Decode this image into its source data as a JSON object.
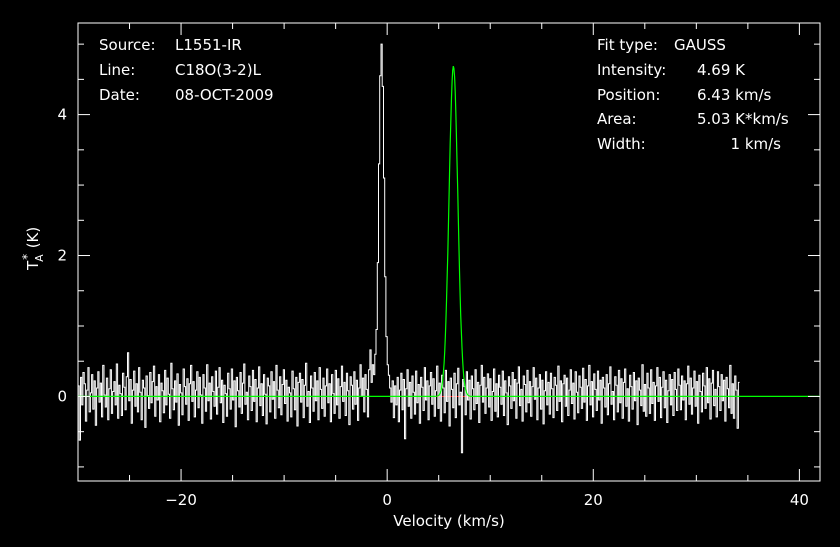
{
  "colors": {
    "background": "#000000",
    "foreground": "#ffffff",
    "fit": "#00ff00",
    "baseline": "#ff0000",
    "zero_line": "#00ff00"
  },
  "header_left": {
    "source_label": "Source:",
    "source_value": "L1551-IR",
    "line_label": "Line:",
    "line_value": "C18O(3-2)L",
    "date_label": "Date:",
    "date_value": "08-OCT-2009"
  },
  "header_right": {
    "fit_type_label": "Fit type:",
    "fit_type_value": "GAUSS",
    "intensity_label": "Intensity:",
    "intensity_value": "4.69 K",
    "position_label": "Position:",
    "position_value": "6.43 km/s",
    "area_label": "Area:",
    "area_value": "5.03 K*km/s",
    "width_label": "Width:",
    "width_value": "1 km/s"
  },
  "chart_data": {
    "type": "line",
    "xlabel": "Velocity (km/s)",
    "ylabel": "T",
    "ylabel_sup": "*",
    "ylabel_sub": "A",
    "ylabel_unit": "(K)",
    "xlim": [
      -30,
      42
    ],
    "ylim": [
      -1.2,
      5.3
    ],
    "x_ticks": [
      -20,
      0,
      20,
      40
    ],
    "x_tick_labels": [
      "−20",
      "0",
      "20",
      "40"
    ],
    "y_ticks": [
      0,
      2,
      4
    ],
    "y_tick_labels": [
      "0",
      "2",
      "4"
    ],
    "grid": false,
    "series": [
      {
        "values_kind": "spectrum",
        "x_start": -30,
        "x_step": 0.12,
        "values": [
          0.15,
          -0.62,
          0.27,
          -0.12,
          0.34,
          0.18,
          -0.35,
          0.09,
          0.41,
          -0.22,
          0.05,
          0.31,
          -0.18,
          0.22,
          -0.41,
          0.12,
          0.35,
          -0.08,
          0.19,
          -0.29,
          0.44,
          0.02,
          -0.15,
          0.26,
          -0.33,
          0.11,
          0.38,
          -0.24,
          0.07,
          0.21,
          -0.12,
          0.46,
          -0.31,
          0.16,
          0.04,
          -0.27,
          0.33,
          0.13,
          -0.19,
          0.28,
          0.62,
          -0.06,
          0.24,
          -0.38,
          0.09,
          0.36,
          -0.14,
          0.18,
          -0.22,
          0.41,
          0.06,
          -0.33,
          0.23,
          0.12,
          -0.44,
          0.29,
          0.01,
          -0.17,
          0.34,
          -0.09,
          0.21,
          0.43,
          -0.28,
          0.14,
          -0.05,
          0.31,
          -0.36,
          0.19,
          0.08,
          -0.23,
          0.37,
          -0.12,
          0.26,
          0.03,
          -0.31,
          0.47,
          0.11,
          -0.19,
          0.22,
          -0.08,
          0.32,
          -0.41,
          0.17,
          0.05,
          -0.26,
          0.39,
          0.14,
          -0.11,
          0.25,
          -0.34,
          0.18,
          0.44,
          -0.07,
          0.21,
          -0.29,
          0.09,
          0.35,
          -0.16,
          0.27,
          0.02,
          -0.38,
          0.31,
          0.12,
          -0.21,
          0.45,
          -0.06,
          0.19,
          -0.32,
          0.28,
          0.07,
          -0.14,
          0.36,
          -0.25,
          0.13,
          0.41,
          -0.09,
          0.23,
          -0.37,
          0.16,
          0.04,
          -0.28,
          0.33,
          0.11,
          -0.18,
          0.39,
          -0.05,
          0.22,
          -0.43,
          0.27,
          0.08,
          -0.15,
          0.34,
          -0.24,
          0.19,
          0.46,
          -0.11,
          0.06,
          -0.33,
          0.29,
          0.14,
          -0.2,
          0.37,
          -0.07,
          0.24,
          -0.36,
          0.12,
          0.42,
          -0.13,
          0.18,
          -0.27,
          0.31,
          0.03,
          -0.39,
          0.26,
          0.15,
          -0.22,
          0.35,
          -0.04,
          0.21,
          -0.31,
          0.44,
          0.09,
          -0.16,
          0.28,
          -0.26,
          0.17,
          0.38,
          -0.1,
          0.23,
          -0.35,
          0.13,
          0.05,
          -0.29,
          0.36,
          0.11,
          -0.19,
          0.27,
          -0.42,
          0.2,
          0.33,
          -0.08,
          0.24,
          -0.3,
          0.16,
          0.47,
          -0.14,
          0.07,
          -0.37,
          0.29,
          0.12,
          -0.21,
          0.34,
          -0.06,
          0.22,
          -0.33,
          0.41,
          0.1,
          -0.17,
          0.26,
          -0.28,
          0.15,
          0.39,
          -0.09,
          0.18,
          -0.36,
          0.31,
          0.04,
          -0.24,
          0.37,
          -0.12,
          0.25,
          -0.31,
          0.14,
          0.43,
          -0.07,
          0.2,
          -0.27,
          0.33,
          0.08,
          -0.4,
          0.28,
          0.16,
          -0.18,
          0.35,
          -0.11,
          0.23,
          -0.34,
          0.12,
          0.45,
          0.0,
          0.26,
          -0.22,
          0.31,
          0.1,
          -0.29,
          0.38,
          0.66,
          0.2,
          0.45,
          0.31,
          0.6,
          0.95,
          1.9,
          3.3,
          4.55,
          5.0,
          4.4,
          3.1,
          1.7,
          0.85,
          0.45,
          0.3,
          0.12,
          -0.08,
          0.22,
          -0.3,
          0.15,
          -0.12,
          0.27,
          -0.36,
          0.09,
          0.33,
          -0.19,
          0.24,
          -0.6,
          0.11,
          0.38,
          -0.14,
          0.2,
          -0.31,
          0.29,
          0.06,
          -0.25,
          0.36,
          -0.09,
          0.17,
          -0.38,
          0.27,
          0.13,
          -0.2,
          0.41,
          -0.05,
          0.22,
          -0.33,
          0.15,
          0.34,
          -0.11,
          0.25,
          -0.28,
          0.08,
          0.43,
          -0.17,
          0.19,
          -0.35,
          0.3,
          0.12,
          -0.23,
          0.37,
          -0.07,
          0.21,
          -0.42,
          0.26,
          0.1,
          -0.16,
          0.33,
          -0.3,
          0.18,
          0.4,
          -0.12,
          0.06,
          -0.8,
          0.24,
          0.14,
          -0.26,
          0.35,
          -0.05,
          0.23,
          -0.32,
          0.29,
          0.11,
          -0.19,
          0.38,
          -0.1,
          0.2,
          -0.37,
          0.16,
          0.44,
          -0.08,
          0.27,
          -0.24,
          0.12,
          0.32,
          -0.15,
          0.25,
          -0.34,
          0.07,
          0.39,
          -0.21,
          0.18,
          -0.29,
          0.3,
          0.13,
          -0.11,
          0.36,
          -0.27,
          0.22,
          0.05,
          -0.4,
          0.28,
          0.15,
          -0.17,
          0.34,
          -0.06,
          0.24,
          -0.31,
          0.19,
          0.42,
          -0.13,
          0.1,
          -0.35,
          0.29,
          0.17,
          -0.22,
          0.37,
          -0.09,
          0.21,
          -0.28,
          0.14,
          0.41,
          -0.04,
          0.26,
          -0.33,
          0.12,
          0.31,
          -0.18,
          0.23,
          -0.39,
          0.08,
          0.35,
          -0.12,
          0.2,
          -0.25,
          0.33,
          0.11,
          -0.3,
          0.27,
          0.16,
          -0.2,
          0.43,
          -0.07,
          0.22,
          -0.36,
          0.18,
          0.3,
          -0.14,
          0.26,
          -0.27,
          0.09,
          0.38,
          -0.1,
          0.19,
          -0.32,
          0.35,
          0.06,
          -0.23,
          0.29,
          0.13,
          -0.17,
          0.4,
          -0.08,
          0.24,
          -0.34,
          0.15,
          0.44,
          -0.12,
          0.21,
          -0.29,
          0.32,
          0.1,
          -0.2,
          0.36,
          -0.05,
          0.23,
          -0.38,
          0.27,
          0.12,
          -0.15,
          0.31,
          -0.26,
          0.18,
          0.42,
          -0.11,
          0.07,
          -0.33,
          0.28,
          0.16,
          -0.22,
          0.37,
          -0.09,
          0.25,
          -0.31,
          0.2,
          0.39,
          -0.14,
          0.11,
          -0.35,
          0.3,
          0.14,
          -0.18,
          0.34,
          -0.06,
          0.22,
          -0.4,
          0.26,
          0.09,
          -0.13,
          0.45,
          -0.21,
          0.17,
          -0.28,
          0.33,
          0.12,
          -0.24,
          0.38,
          -0.1,
          0.2,
          -0.34,
          0.15,
          0.41,
          -0.07,
          0.27,
          -0.3,
          0.13,
          0.35,
          -0.16,
          0.23,
          -0.37,
          0.08,
          0.31,
          -0.12,
          0.24,
          -0.27,
          0.34,
          0.1,
          -0.2,
          0.39,
          0.16,
          -0.19,
          0.29,
          -0.05,
          0.22,
          -0.33,
          0.18,
          0.43,
          -0.11,
          0.26,
          -0.25,
          0.12,
          0.36,
          -0.14,
          0.21,
          -0.38,
          0.3,
          0.07,
          -0.22,
          0.33,
          0.15,
          -0.17,
          0.41,
          -0.09,
          0.25,
          -0.32,
          0.19,
          0.37,
          -0.13,
          0.1,
          -0.29,
          0.35,
          0.14,
          -0.2,
          0.31,
          -0.06,
          0.23,
          -0.35,
          0.27,
          0.11,
          -0.16,
          0.44,
          -0.24,
          0.18,
          -0.31,
          0.29,
          0.09,
          -0.45,
          0.2
        ]
      }
    ],
    "gaussian_fit": {
      "amplitude": 4.69,
      "center": 6.43,
      "fwhm": 1.0
    },
    "baseline_segment": [
      4.4,
      8.5
    ]
  }
}
